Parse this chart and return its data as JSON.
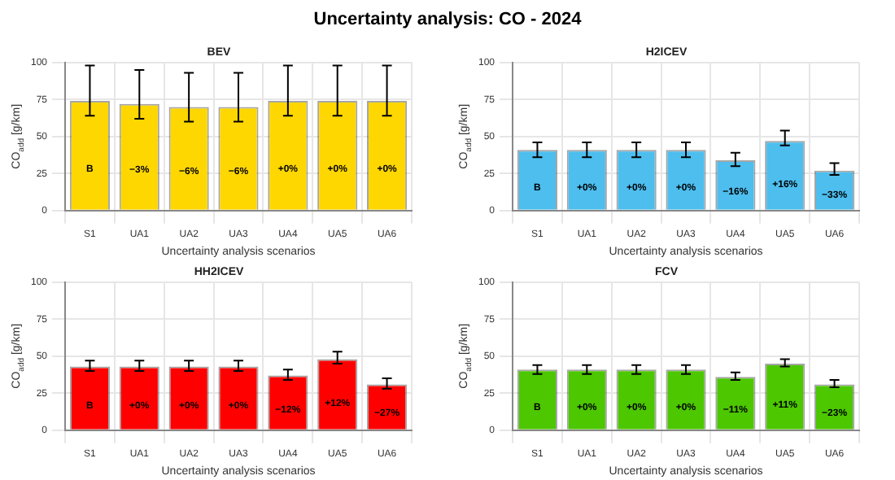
{
  "chart_data": [
    {
      "type": "bar",
      "title": "BEV",
      "xlabel": "Uncertainty analysis scenarios",
      "ylabel": "CO$_{add}$ [g/km]",
      "categories": [
        "S1",
        "UA1",
        "UA2",
        "UA3",
        "UA4",
        "UA5",
        "UA6"
      ],
      "values": [
        74,
        72,
        70,
        70,
        74,
        74,
        74
      ],
      "color": "#ffd700",
      "errors": [
        [
          64,
          98
        ],
        [
          62,
          95
        ],
        [
          60,
          93
        ],
        [
          60,
          93
        ],
        [
          64,
          98
        ],
        [
          64,
          98
        ],
        [
          64,
          98
        ]
      ],
      "annotations": [
        "Uncertainty analysis: CO - 2024",
        "B",
        "−3%",
        "−6%",
        "−6%",
        "+0%",
        "+0%",
        "+0%"
      ],
      "ylim": [
        0,
        100
      ],
      "yticks": [
        0,
        25,
        50,
        75,
        100
      ],
      "grid": true
    },
    {
      "type": "bar",
      "title": "H2ICEV",
      "xlabel": "Uncertainty analysis scenarios",
      "ylabel": "CO$_{add}$ [g/km]",
      "categories": [
        "S1",
        "UA1",
        "UA2",
        "UA3",
        "UA4",
        "UA5",
        "UA6"
      ],
      "values": [
        41,
        41,
        41,
        41,
        34,
        47,
        27
      ],
      "color": "#4dbeee",
      "errors": [
        [
          36,
          46
        ],
        [
          36,
          46
        ],
        [
          36,
          46
        ],
        [
          36,
          46
        ],
        [
          30,
          39
        ],
        [
          44,
          54
        ],
        [
          24,
          32
        ]
      ],
      "annotations": [
        "B",
        "+0%",
        "+0%",
        "+0%",
        "−16%",
        "+16%",
        "−33%"
      ],
      "ylim": [
        0,
        100
      ],
      "yticks": [
        0,
        25,
        50,
        75,
        100
      ],
      "grid": true
    },
    {
      "type": "bar",
      "title": "HH2ICEV",
      "xlabel": "Uncertainty analysis scenarios",
      "ylabel": "CO$_{add}$ [g/km]",
      "categories": [
        "S1",
        "UA1",
        "UA2",
        "UA3",
        "UA4",
        "UA5",
        "UA6"
      ],
      "values": [
        43,
        43,
        43,
        43,
        37,
        48,
        31
      ],
      "color": "#ff0000",
      "errors": [
        [
          40,
          47
        ],
        [
          40,
          47
        ],
        [
          40,
          47
        ],
        [
          40,
          47
        ],
        [
          34,
          41
        ],
        [
          45,
          53
        ],
        [
          28,
          35
        ]
      ],
      "annotations": [
        "B",
        "+0%",
        "+0%",
        "+0%",
        "−12%",
        "+12%",
        "−27%"
      ],
      "ylim": [
        0,
        100
      ],
      "yticks": [
        0,
        25,
        50,
        75,
        100
      ],
      "grid": true
    },
    {
      "type": "bar",
      "title": "FCV",
      "xlabel": "Uncertainty analysis scenarios",
      "ylabel": "CO$_{add}$ [g/km]",
      "categories": [
        "S1",
        "UA1",
        "UA2",
        "UA3",
        "UA4",
        "UA5",
        "UA6"
      ],
      "values": [
        41,
        41,
        41,
        41,
        36,
        45,
        31
      ],
      "color": "#4cc700",
      "errors": [
        [
          38,
          44
        ],
        [
          38,
          44
        ],
        [
          38,
          44
        ],
        [
          38,
          44
        ],
        [
          34,
          39
        ],
        [
          43,
          48
        ],
        [
          29,
          34
        ]
      ],
      "annotations": [
        "B",
        "+0%",
        "+0%",
        "+0%",
        "−11%",
        "+11%",
        "−23%"
      ],
      "ylim": [
        0,
        100
      ],
      "yticks": [
        0,
        25,
        50,
        75,
        100
      ],
      "grid": true
    }
  ]
}
